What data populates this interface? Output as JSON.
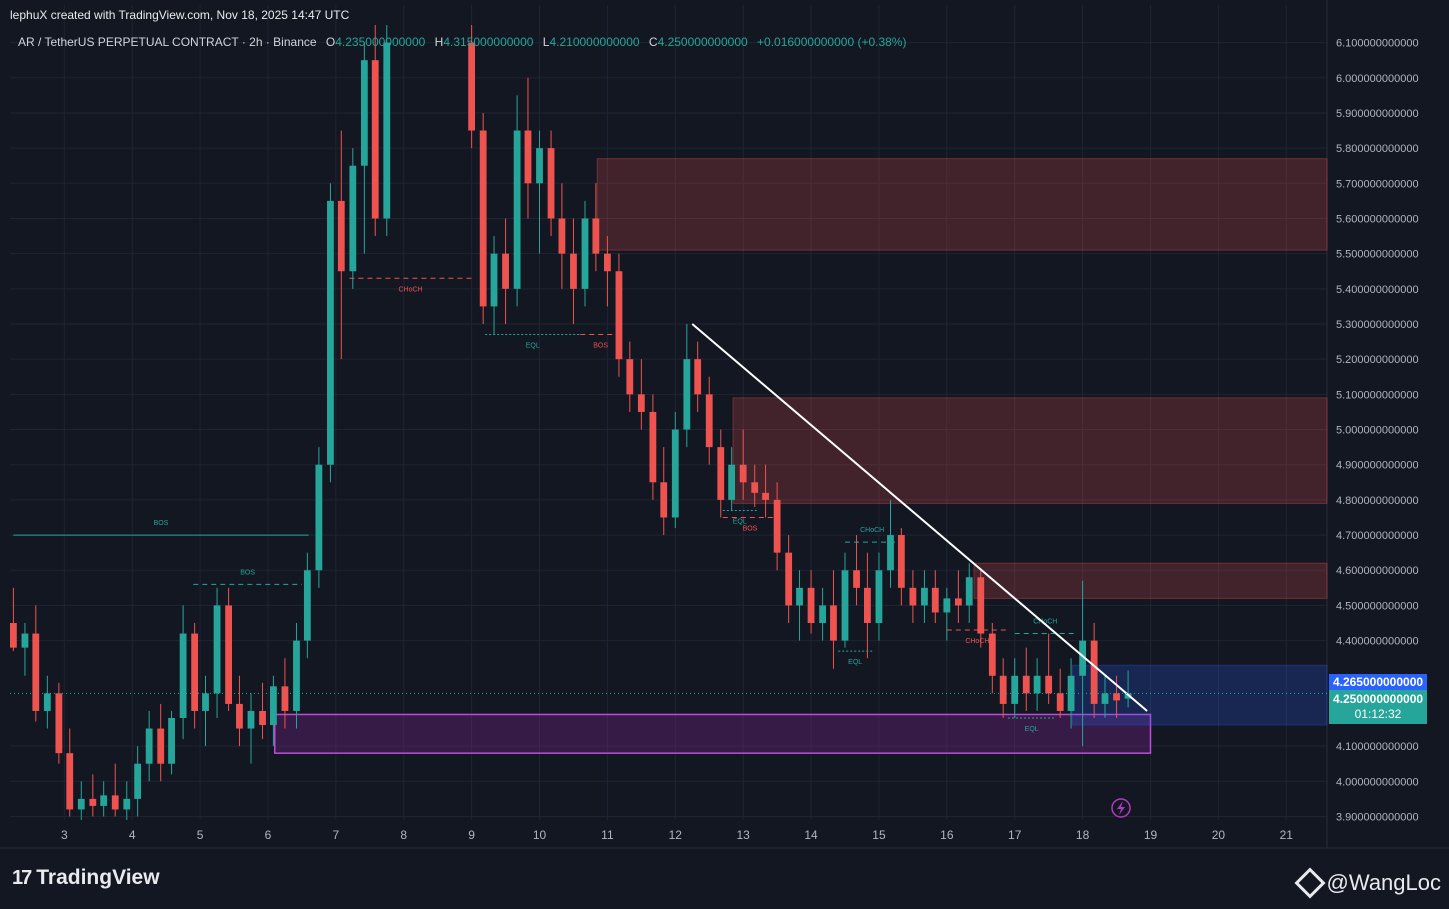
{
  "header": {
    "created_by": "lephuX created with TradingView.com, Nov 18, 2025 14:47 UTC",
    "symbol": "AR / TetherUS PERPETUAL CONTRACT · 2h · Binance",
    "ohlc": {
      "o_label": "O",
      "o": "4.235000000000",
      "h_label": "H",
      "h": "4.315000000000",
      "l_label": "L",
      "l": "4.210000000000",
      "c_label": "C",
      "c": "4.250000000000",
      "change": "+0.016000000000 (+0.38%)"
    }
  },
  "price_axis": {
    "current_price": "4.250000000000",
    "countdown": "01:12:32",
    "marker_price": "4.265000000000"
  },
  "footer": {
    "logo_text": "TradingView",
    "logo_mark": "17",
    "attribution": "@WangLoc"
  },
  "colors": {
    "background": "#131722",
    "up": "#26a69a",
    "down": "#ef5350",
    "supply_zone": "#5d3538",
    "demand_zone": "#6a2a7a",
    "current_price_badge": "#26a69a",
    "marker_badge": "#2962ff",
    "trendline": "#ffffff"
  },
  "chart_data": {
    "type": "candlestick",
    "y_ticks": [
      "6.100000000000",
      "6.000000000000",
      "5.900000000000",
      "5.800000000000",
      "5.700000000000",
      "5.600000000000",
      "5.500000000000",
      "5.400000000000",
      "5.300000000000",
      "5.200000000000",
      "5.100000000000",
      "5.000000000000",
      "4.900000000000",
      "4.800000000000",
      "4.700000000000",
      "4.600000000000",
      "4.500000000000",
      "4.400000000000",
      "4.100000000000",
      "4.000000000000",
      "3.900000000000"
    ],
    "y_range": [
      3.89,
      6.15
    ],
    "x_ticks": [
      "3",
      "4",
      "5",
      "6",
      "7",
      "8",
      "9",
      "10",
      "11",
      "12",
      "13",
      "14",
      "15",
      "16",
      "17",
      "18",
      "19",
      "20",
      "21"
    ],
    "x_range_days": [
      2.2,
      21.6
    ],
    "candles": [
      {
        "t": 2.25,
        "o": 4.45,
        "h": 4.55,
        "l": 4.37,
        "c": 4.38
      },
      {
        "t": 2.42,
        "o": 4.38,
        "h": 4.45,
        "l": 4.3,
        "c": 4.42
      },
      {
        "t": 2.58,
        "o": 4.42,
        "h": 4.5,
        "l": 4.17,
        "c": 4.2
      },
      {
        "t": 2.75,
        "o": 4.2,
        "h": 4.3,
        "l": 4.15,
        "c": 4.25
      },
      {
        "t": 2.92,
        "o": 4.25,
        "h": 4.28,
        "l": 4.05,
        "c": 4.08
      },
      {
        "t": 3.08,
        "o": 4.08,
        "h": 4.15,
        "l": 3.9,
        "c": 3.92
      },
      {
        "t": 3.25,
        "o": 3.92,
        "h": 4.0,
        "l": 3.89,
        "c": 3.95
      },
      {
        "t": 3.42,
        "o": 3.95,
        "h": 4.02,
        "l": 3.9,
        "c": 3.93
      },
      {
        "t": 3.58,
        "o": 3.93,
        "h": 4.0,
        "l": 3.9,
        "c": 3.96
      },
      {
        "t": 3.75,
        "o": 3.96,
        "h": 4.05,
        "l": 3.9,
        "c": 3.92
      },
      {
        "t": 3.92,
        "o": 3.92,
        "h": 4.0,
        "l": 3.89,
        "c": 3.95
      },
      {
        "t": 4.08,
        "o": 3.95,
        "h": 4.1,
        "l": 3.9,
        "c": 4.05
      },
      {
        "t": 4.25,
        "o": 4.05,
        "h": 4.2,
        "l": 4.0,
        "c": 4.15
      },
      {
        "t": 4.42,
        "o": 4.15,
        "h": 4.22,
        "l": 4.0,
        "c": 4.05
      },
      {
        "t": 4.58,
        "o": 4.05,
        "h": 4.2,
        "l": 4.02,
        "c": 4.18
      },
      {
        "t": 4.75,
        "o": 4.18,
        "h": 4.5,
        "l": 4.12,
        "c": 4.42
      },
      {
        "t": 4.92,
        "o": 4.42,
        "h": 4.45,
        "l": 4.15,
        "c": 4.2
      },
      {
        "t": 5.08,
        "o": 4.2,
        "h": 4.3,
        "l": 4.1,
        "c": 4.25
      },
      {
        "t": 5.25,
        "o": 4.25,
        "h": 4.55,
        "l": 4.18,
        "c": 4.5
      },
      {
        "t": 5.42,
        "o": 4.5,
        "h": 4.55,
        "l": 4.2,
        "c": 4.22
      },
      {
        "t": 5.58,
        "o": 4.22,
        "h": 4.3,
        "l": 4.1,
        "c": 4.15
      },
      {
        "t": 5.75,
        "o": 4.15,
        "h": 4.25,
        "l": 4.05,
        "c": 4.2
      },
      {
        "t": 5.92,
        "o": 4.2,
        "h": 4.28,
        "l": 4.12,
        "c": 4.16
      },
      {
        "t": 6.08,
        "o": 4.16,
        "h": 4.3,
        "l": 4.1,
        "c": 4.27
      },
      {
        "t": 6.25,
        "o": 4.27,
        "h": 4.35,
        "l": 4.15,
        "c": 4.2
      },
      {
        "t": 6.42,
        "o": 4.2,
        "h": 4.45,
        "l": 4.15,
        "c": 4.4
      },
      {
        "t": 6.58,
        "o": 4.4,
        "h": 4.65,
        "l": 4.35,
        "c": 4.6
      },
      {
        "t": 6.75,
        "o": 4.6,
        "h": 4.95,
        "l": 4.55,
        "c": 4.9
      },
      {
        "t": 6.92,
        "o": 4.9,
        "h": 5.7,
        "l": 4.85,
        "c": 5.65
      },
      {
        "t": 7.08,
        "o": 5.65,
        "h": 5.85,
        "l": 5.2,
        "c": 5.45
      },
      {
        "t": 7.25,
        "o": 5.45,
        "h": 5.8,
        "l": 5.4,
        "c": 5.75
      },
      {
        "t": 7.42,
        "o": 5.75,
        "h": 6.1,
        "l": 5.5,
        "c": 6.05
      },
      {
        "t": 7.58,
        "o": 6.05,
        "h": 6.15,
        "l": 5.55,
        "c": 5.6
      },
      {
        "t": 7.75,
        "o": 5.6,
        "h": 6.15,
        "l": 5.55,
        "c": 6.1
      },
      {
        "t": 9.0,
        "o": 6.1,
        "h": 6.15,
        "l": 5.8,
        "c": 5.85
      },
      {
        "t": 9.17,
        "o": 5.85,
        "h": 5.9,
        "l": 5.3,
        "c": 5.35
      },
      {
        "t": 9.33,
        "o": 5.35,
        "h": 5.55,
        "l": 5.27,
        "c": 5.5
      },
      {
        "t": 9.5,
        "o": 5.5,
        "h": 5.6,
        "l": 5.3,
        "c": 5.4
      },
      {
        "t": 9.67,
        "o": 5.4,
        "h": 5.95,
        "l": 5.35,
        "c": 5.85
      },
      {
        "t": 9.83,
        "o": 5.85,
        "h": 6.0,
        "l": 5.6,
        "c": 5.7
      },
      {
        "t": 10.0,
        "o": 5.7,
        "h": 5.85,
        "l": 5.5,
        "c": 5.8
      },
      {
        "t": 10.17,
        "o": 5.8,
        "h": 5.85,
        "l": 5.55,
        "c": 5.6
      },
      {
        "t": 10.33,
        "o": 5.6,
        "h": 5.7,
        "l": 5.4,
        "c": 5.5
      },
      {
        "t": 10.5,
        "o": 5.5,
        "h": 5.6,
        "l": 5.3,
        "c": 5.4
      },
      {
        "t": 10.67,
        "o": 5.4,
        "h": 5.65,
        "l": 5.35,
        "c": 5.6
      },
      {
        "t": 10.83,
        "o": 5.6,
        "h": 5.7,
        "l": 5.45,
        "c": 5.5
      },
      {
        "t": 11.0,
        "o": 5.5,
        "h": 5.55,
        "l": 5.35,
        "c": 5.45
      },
      {
        "t": 11.17,
        "o": 5.45,
        "h": 5.5,
        "l": 5.15,
        "c": 5.2
      },
      {
        "t": 11.33,
        "o": 5.2,
        "h": 5.25,
        "l": 5.05,
        "c": 5.1
      },
      {
        "t": 11.5,
        "o": 5.1,
        "h": 5.2,
        "l": 5.0,
        "c": 5.05
      },
      {
        "t": 11.67,
        "o": 5.05,
        "h": 5.1,
        "l": 4.8,
        "c": 4.85
      },
      {
        "t": 11.83,
        "o": 4.85,
        "h": 4.95,
        "l": 4.7,
        "c": 4.75
      },
      {
        "t": 12.0,
        "o": 4.75,
        "h": 5.05,
        "l": 4.72,
        "c": 5.0
      },
      {
        "t": 12.17,
        "o": 5.0,
        "h": 5.3,
        "l": 4.95,
        "c": 5.2
      },
      {
        "t": 12.33,
        "o": 5.2,
        "h": 5.25,
        "l": 5.05,
        "c": 5.1
      },
      {
        "t": 12.5,
        "o": 5.1,
        "h": 5.15,
        "l": 4.9,
        "c": 4.95
      },
      {
        "t": 12.67,
        "o": 4.95,
        "h": 5.0,
        "l": 4.75,
        "c": 4.8
      },
      {
        "t": 12.83,
        "o": 4.8,
        "h": 4.95,
        "l": 4.77,
        "c": 4.9
      },
      {
        "t": 13.0,
        "o": 4.9,
        "h": 5.0,
        "l": 4.8,
        "c": 4.85
      },
      {
        "t": 13.17,
        "o": 4.85,
        "h": 4.9,
        "l": 4.78,
        "c": 4.82
      },
      {
        "t": 13.33,
        "o": 4.82,
        "h": 4.9,
        "l": 4.75,
        "c": 4.8
      },
      {
        "t": 13.5,
        "o": 4.8,
        "h": 4.85,
        "l": 4.6,
        "c": 4.65
      },
      {
        "t": 13.67,
        "o": 4.65,
        "h": 4.7,
        "l": 4.45,
        "c": 4.5
      },
      {
        "t": 13.83,
        "o": 4.5,
        "h": 4.6,
        "l": 4.4,
        "c": 4.55
      },
      {
        "t": 14.0,
        "o": 4.55,
        "h": 4.6,
        "l": 4.42,
        "c": 4.45
      },
      {
        "t": 14.17,
        "o": 4.45,
        "h": 4.55,
        "l": 4.4,
        "c": 4.5
      },
      {
        "t": 14.33,
        "o": 4.5,
        "h": 4.6,
        "l": 4.32,
        "c": 4.4
      },
      {
        "t": 14.5,
        "o": 4.4,
        "h": 4.65,
        "l": 4.38,
        "c": 4.6
      },
      {
        "t": 14.67,
        "o": 4.6,
        "h": 4.7,
        "l": 4.5,
        "c": 4.55
      },
      {
        "t": 14.83,
        "o": 4.55,
        "h": 4.65,
        "l": 4.35,
        "c": 4.45
      },
      {
        "t": 15.0,
        "o": 4.45,
        "h": 4.65,
        "l": 4.4,
        "c": 4.6
      },
      {
        "t": 15.17,
        "o": 4.6,
        "h": 4.8,
        "l": 4.55,
        "c": 4.7
      },
      {
        "t": 15.33,
        "o": 4.7,
        "h": 4.72,
        "l": 4.5,
        "c": 4.55
      },
      {
        "t": 15.5,
        "o": 4.55,
        "h": 4.6,
        "l": 4.45,
        "c": 4.5
      },
      {
        "t": 15.67,
        "o": 4.5,
        "h": 4.6,
        "l": 4.45,
        "c": 4.55
      },
      {
        "t": 15.83,
        "o": 4.55,
        "h": 4.6,
        "l": 4.45,
        "c": 4.48
      },
      {
        "t": 16.0,
        "o": 4.48,
        "h": 4.55,
        "l": 4.4,
        "c": 4.52
      },
      {
        "t": 16.17,
        "o": 4.52,
        "h": 4.6,
        "l": 4.45,
        "c": 4.5
      },
      {
        "t": 16.33,
        "o": 4.5,
        "h": 4.62,
        "l": 4.45,
        "c": 4.58
      },
      {
        "t": 16.5,
        "o": 4.58,
        "h": 4.6,
        "l": 4.38,
        "c": 4.42
      },
      {
        "t": 16.67,
        "o": 4.42,
        "h": 4.45,
        "l": 4.25,
        "c": 4.3
      },
      {
        "t": 16.83,
        "o": 4.3,
        "h": 4.35,
        "l": 4.18,
        "c": 4.22
      },
      {
        "t": 17.0,
        "o": 4.22,
        "h": 4.35,
        "l": 4.18,
        "c": 4.3
      },
      {
        "t": 17.17,
        "o": 4.3,
        "h": 4.38,
        "l": 4.2,
        "c": 4.25
      },
      {
        "t": 17.33,
        "o": 4.25,
        "h": 4.35,
        "l": 4.2,
        "c": 4.3
      },
      {
        "t": 17.5,
        "o": 4.3,
        "h": 4.42,
        "l": 4.22,
        "c": 4.25
      },
      {
        "t": 17.67,
        "o": 4.25,
        "h": 4.32,
        "l": 4.18,
        "c": 4.2
      },
      {
        "t": 17.83,
        "o": 4.2,
        "h": 4.35,
        "l": 4.15,
        "c": 4.3
      },
      {
        "t": 18.0,
        "o": 4.3,
        "h": 4.57,
        "l": 4.1,
        "c": 4.4
      },
      {
        "t": 18.17,
        "o": 4.4,
        "h": 4.45,
        "l": 4.18,
        "c": 4.22
      },
      {
        "t": 18.33,
        "o": 4.22,
        "h": 4.3,
        "l": 4.18,
        "c": 4.25
      },
      {
        "t": 18.5,
        "o": 4.25,
        "h": 4.3,
        "l": 4.18,
        "c": 4.23
      },
      {
        "t": 18.67,
        "o": 4.235,
        "h": 4.315,
        "l": 4.21,
        "c": 4.25
      }
    ],
    "annotations": [
      {
        "text": "BOS",
        "type": "bos_up",
        "x1": 2.25,
        "x2": 6.6,
        "y": 4.7
      },
      {
        "text": "BOS",
        "type": "bos_up",
        "x1": 4.9,
        "x2": 6.5,
        "y": 4.56
      },
      {
        "text": "CHoCH",
        "type": "choch_down",
        "x1": 7.2,
        "x2": 9.0,
        "y": 5.43
      },
      {
        "text": "EQL",
        "type": "eql",
        "x1": 9.2,
        "x2": 10.6,
        "y": 5.27
      },
      {
        "text": "BOS",
        "type": "bos_down",
        "x1": 10.6,
        "x2": 11.2,
        "y": 5.27
      },
      {
        "text": "EQL",
        "type": "eql",
        "x1": 12.7,
        "x2": 13.2,
        "y": 4.77
      },
      {
        "text": "BOS",
        "type": "bos_down",
        "x1": 12.7,
        "x2": 13.5,
        "y": 4.75
      },
      {
        "text": "CHoCH",
        "type": "choch_up",
        "x1": 14.5,
        "x2": 15.3,
        "y": 4.68
      },
      {
        "text": "EQL",
        "type": "eql",
        "x1": 14.4,
        "x2": 14.9,
        "y": 4.37
      },
      {
        "text": "CHoCH",
        "type": "choch_down",
        "x1": 16.0,
        "x2": 16.9,
        "y": 4.43
      },
      {
        "text": "CHoCH",
        "type": "choch_up",
        "x1": 17.0,
        "x2": 17.9,
        "y": 4.42
      },
      {
        "text": "EQL",
        "type": "eql",
        "x1": 16.9,
        "x2": 17.6,
        "y": 4.18
      }
    ],
    "zones": [
      {
        "type": "supply",
        "x1": 10.85,
        "x2": 21.6,
        "y1": 5.51,
        "y2": 5.77
      },
      {
        "type": "supply",
        "x1": 12.85,
        "x2": 21.6,
        "y1": 4.79,
        "y2": 5.09
      },
      {
        "type": "supply",
        "x1": 16.4,
        "x2": 21.6,
        "y1": 4.52,
        "y2": 4.62
      },
      {
        "type": "demand",
        "x1": 6.1,
        "x2": 19.0,
        "y1": 4.08,
        "y2": 4.19
      },
      {
        "type": "position",
        "x1": 17.85,
        "x2": 21.6,
        "y1": 4.16,
        "y2": 4.33
      }
    ],
    "trendline": {
      "x1": 12.25,
      "y1": 5.3,
      "x2": 18.95,
      "y2": 4.2
    }
  }
}
